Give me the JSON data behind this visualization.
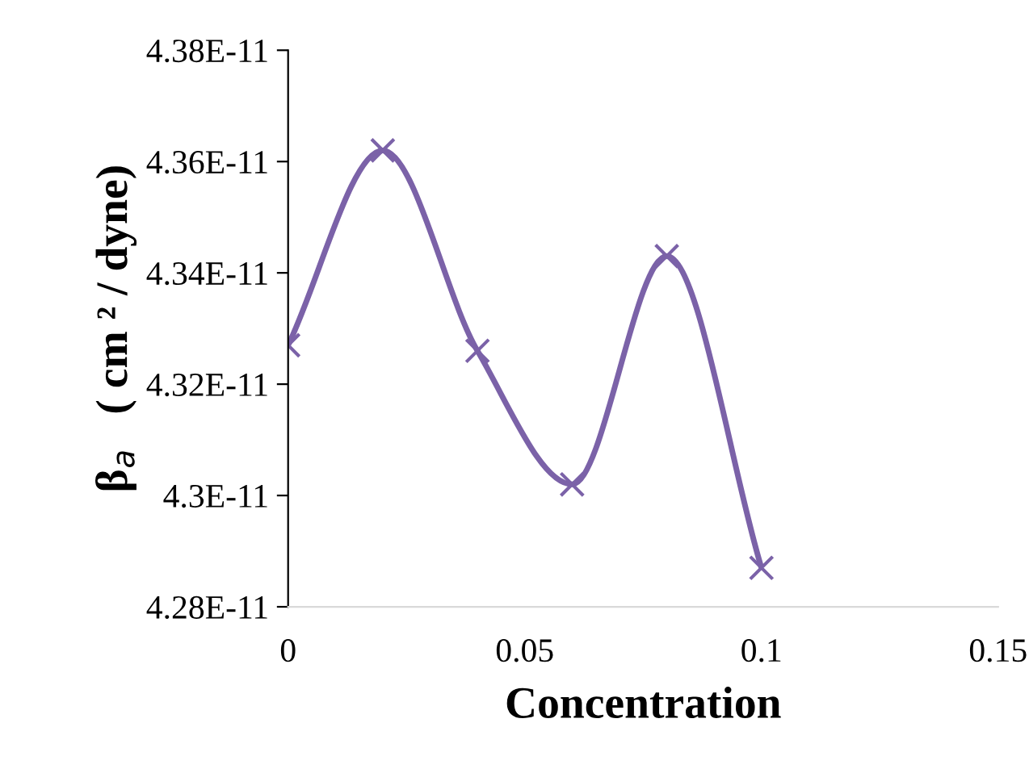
{
  "chart_data": {
    "type": "line",
    "xlabel": "Concentration",
    "ylabel": "β$_{a}$   ( cm ² / dyne)",
    "x": [
      0,
      0.02,
      0.04,
      0.06,
      0.08,
      0.1
    ],
    "series": [
      {
        "color": "#7b62a8",
        "values": [
          4.327e-11,
          4.362e-11,
          4.326e-11,
          4.302e-11,
          4.343e-11,
          4.287e-11
        ]
      }
    ],
    "xlim": [
      0,
      0.15
    ],
    "xticks": [
      0,
      0.05,
      0.1,
      0.15
    ],
    "ylim": [
      4.28e-11,
      4.38e-11
    ],
    "yticks": [
      {
        "value": 4.28e-11,
        "label": "4.28E-11"
      },
      {
        "value": 4.3e-11,
        "label": "4.3E-11"
      },
      {
        "value": 4.32e-11,
        "label": "4.32E-11"
      },
      {
        "value": 4.34e-11,
        "label": "4.34E-11"
      },
      {
        "value": 4.36e-11,
        "label": "4.36E-11"
      },
      {
        "value": 4.38e-11,
        "label": "4.38E-11"
      }
    ],
    "grid": false,
    "marker": "cross",
    "line_style": "solid"
  }
}
